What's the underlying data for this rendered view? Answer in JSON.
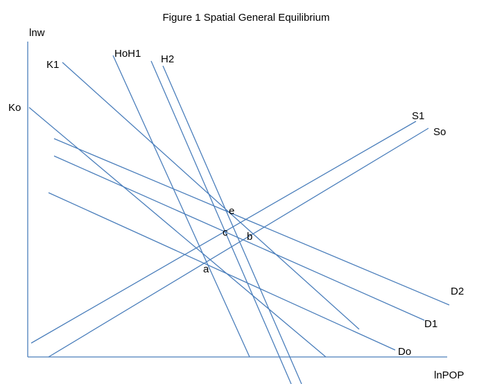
{
  "title": "Figure 1   Spatial General Equilibrium",
  "axes": {
    "y_label": "lnw",
    "x_label": "lnPOP"
  },
  "curve_labels": {
    "K1": "K1",
    "Ko": "Ko",
    "HoH1": "HoH1",
    "H2": "H2",
    "S1": "S1",
    "So": "So",
    "D2": "D2",
    "D1": "D1",
    "Do": "Do"
  },
  "points": {
    "e": "e",
    "c": "c",
    "b": "b",
    "a": "a"
  }
}
